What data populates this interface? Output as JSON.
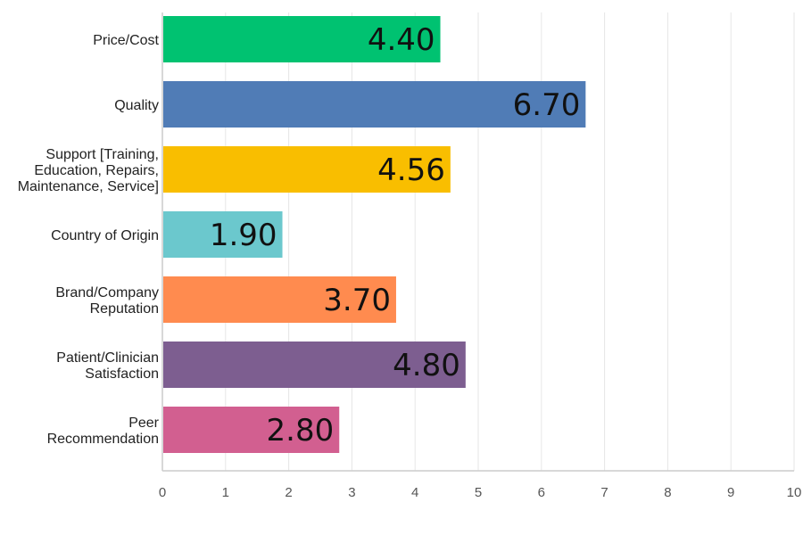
{
  "chart_data": {
    "type": "bar",
    "orientation": "horizontal",
    "categories": [
      "Price/Cost",
      "Quality",
      "Support [Training, Education, Repairs, Maintenance, Service]",
      "Country of Origin",
      "Brand/Company Reputation",
      "Patient/Clinician Satisfaction",
      "Peer Recommendation"
    ],
    "category_lines": [
      [
        "Price/Cost"
      ],
      [
        "Quality"
      ],
      [
        "Support [Training,",
        "Education, Repairs,",
        "Maintenance, Service]"
      ],
      [
        "Country of Origin"
      ],
      [
        "Brand/Company",
        "Reputation"
      ],
      [
        "Patient/Clinician",
        "Satisfaction"
      ],
      [
        "Peer",
        "Recommendation"
      ]
    ],
    "values": [
      4.4,
      6.7,
      4.56,
      1.9,
      3.7,
      4.8,
      2.8
    ],
    "value_labels": [
      "4.40",
      "6.70",
      "4.56",
      "1.90",
      "3.70",
      "4.80",
      "2.80"
    ],
    "colors": [
      "#00c271",
      "#507cb6",
      "#f9be00",
      "#6bc8cd",
      "#ff8b4f",
      "#7d5e90",
      "#d25f90"
    ],
    "xlim": [
      0,
      10
    ],
    "xticks": [
      "0",
      "1",
      "2",
      "3",
      "4",
      "5",
      "6",
      "7",
      "8",
      "9",
      "10"
    ],
    "grid": true,
    "title": "",
    "xlabel": "",
    "ylabel": ""
  }
}
